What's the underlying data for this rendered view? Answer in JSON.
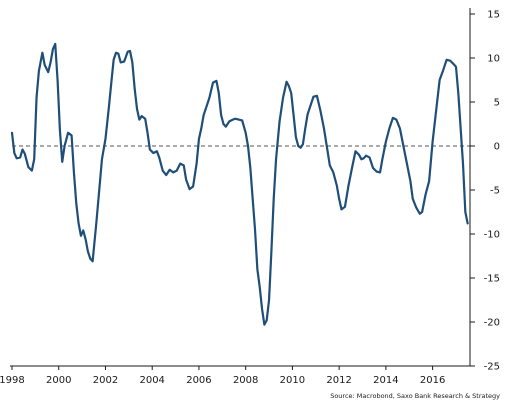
{
  "chart_data": {
    "type": "line",
    "title": "",
    "xlabel": "",
    "ylabel": "",
    "xlim": [
      1998.0,
      2017.6
    ],
    "ylim": [
      -25,
      15
    ],
    "x_ticks": [
      1998,
      2000,
      2002,
      2004,
      2006,
      2008,
      2010,
      2012,
      2014,
      2016
    ],
    "x_tick_labels": [
      "1998",
      "2000",
      "2002",
      "2004",
      "2006",
      "2008",
      "2010",
      "2012",
      "2014",
      "2016"
    ],
    "y_ticks": [
      15,
      10,
      5,
      0,
      -5,
      -10,
      -15,
      -20,
      -25
    ],
    "y_tick_labels": [
      "15",
      "10",
      "5",
      "0",
      "-5",
      "-10",
      "-15",
      "-20",
      "-25"
    ],
    "y_axis_position": "right",
    "grid": false,
    "zero_line": "dashed",
    "line_color": "#1f4e79",
    "zero_line_color": "#555555",
    "source": "Source: Macrobond, Saxo Bank Research & Strategy",
    "series": [
      {
        "x": [
          1998.0,
          1998.1,
          1998.2,
          1998.35,
          1998.45,
          1998.55,
          1998.7,
          1998.85,
          1998.95,
          1999.05,
          1999.15,
          1999.3,
          1999.4,
          1999.55,
          1999.65,
          1999.75,
          1999.85,
          1999.95,
          2000.05,
          2000.15,
          2000.25,
          2000.4,
          2000.55,
          2000.65,
          2000.75,
          2000.85,
          2000.95,
          2001.05,
          2001.15,
          2001.25,
          2001.35,
          2001.45,
          2001.6,
          2001.7,
          2001.85,
          2002.0,
          2002.15,
          2002.25,
          2002.35,
          2002.45,
          2002.55,
          2002.65,
          2002.8,
          2002.95,
          2003.05,
          2003.15,
          2003.25,
          2003.35,
          2003.45,
          2003.55,
          2003.7,
          2003.8,
          2003.9,
          2004.05,
          2004.2,
          2004.3,
          2004.45,
          2004.6,
          2004.75,
          2004.9,
          2005.05,
          2005.2,
          2005.35,
          2005.45,
          2005.6,
          2005.75,
          2005.9,
          2006.0,
          2006.1,
          2006.2,
          2006.3,
          2006.45,
          2006.6,
          2006.75,
          2006.85,
          2006.95,
          2007.05,
          2007.15,
          2007.3,
          2007.45,
          2007.55,
          2007.7,
          2007.85,
          2008.0,
          2008.1,
          2008.2,
          2008.3,
          2008.4,
          2008.5,
          2008.6,
          2008.7,
          2008.8,
          2008.9,
          2009.0,
          2009.1,
          2009.2,
          2009.3,
          2009.45,
          2009.6,
          2009.75,
          2009.85,
          2009.95,
          2010.05,
          2010.15,
          2010.25,
          2010.35,
          2010.45,
          2010.55,
          2010.65,
          2010.8,
          2010.9,
          2011.05,
          2011.2,
          2011.35,
          2011.5,
          2011.6,
          2011.75,
          2011.9,
          2012.0,
          2012.1,
          2012.25,
          2012.4,
          2012.55,
          2012.7,
          2012.85,
          2012.95,
          2013.05,
          2013.15,
          2013.3,
          2013.45,
          2013.6,
          2013.75,
          2013.85,
          2014.0,
          2014.15,
          2014.3,
          2014.45,
          2014.6,
          2014.75,
          2014.9,
          2015.05,
          2015.15,
          2015.3,
          2015.45,
          2015.55,
          2015.7,
          2015.85,
          2016.0,
          2016.15,
          2016.3,
          2016.45,
          2016.6,
          2016.75,
          2016.9,
          2017.0,
          2017.1,
          2017.2,
          2017.3,
          2017.4,
          2017.5
        ],
        "values": [
          1.5,
          -0.8,
          -1.4,
          -1.3,
          -0.4,
          -0.9,
          -2.4,
          -2.8,
          -1.5,
          5.5,
          8.5,
          10.6,
          9.2,
          8.4,
          9.5,
          11.0,
          11.6,
          7.5,
          1.8,
          -1.8,
          0.0,
          1.5,
          1.2,
          -3.0,
          -6.5,
          -8.8,
          -10.2,
          -9.6,
          -10.6,
          -12.0,
          -12.8,
          -13.1,
          -9.0,
          -6.0,
          -1.5,
          0.8,
          4.5,
          7.2,
          9.8,
          10.6,
          10.5,
          9.5,
          9.6,
          10.7,
          10.8,
          9.5,
          6.5,
          4.2,
          3.0,
          3.4,
          3.1,
          1.5,
          -0.4,
          -0.8,
          -0.6,
          -1.3,
          -2.8,
          -3.3,
          -2.7,
          -3.0,
          -2.8,
          -2.0,
          -2.2,
          -3.8,
          -4.9,
          -4.6,
          -2.0,
          0.8,
          2.0,
          3.5,
          4.3,
          5.5,
          7.2,
          7.4,
          6.0,
          3.5,
          2.5,
          2.2,
          2.8,
          3.0,
          3.1,
          3.0,
          2.9,
          1.5,
          0.0,
          -2.5,
          -6.0,
          -9.5,
          -14.0,
          -16.0,
          -18.5,
          -20.3,
          -19.8,
          -17.5,
          -12.0,
          -6.0,
          -1.5,
          2.8,
          5.5,
          7.3,
          6.8,
          6.0,
          3.5,
          1.0,
          0.0,
          -0.2,
          0.2,
          2.0,
          3.6,
          4.8,
          5.6,
          5.7,
          4.0,
          2.0,
          -0.5,
          -2.2,
          -3.0,
          -4.5,
          -6.0,
          -7.2,
          -6.9,
          -4.5,
          -2.5,
          -0.6,
          -1.0,
          -1.5,
          -1.4,
          -1.1,
          -1.3,
          -2.5,
          -2.9,
          -3.0,
          -1.5,
          0.5,
          2.0,
          3.2,
          3.0,
          2.0,
          0.0,
          -2.0,
          -4.0,
          -6.0,
          -7.0,
          -7.7,
          -7.5,
          -5.5,
          -4.0,
          0.5,
          4.0,
          7.5,
          8.6,
          9.8,
          9.7,
          9.3,
          9.0,
          6.0,
          2.0,
          -2.0,
          -7.5,
          -8.8
        ]
      }
    ]
  }
}
